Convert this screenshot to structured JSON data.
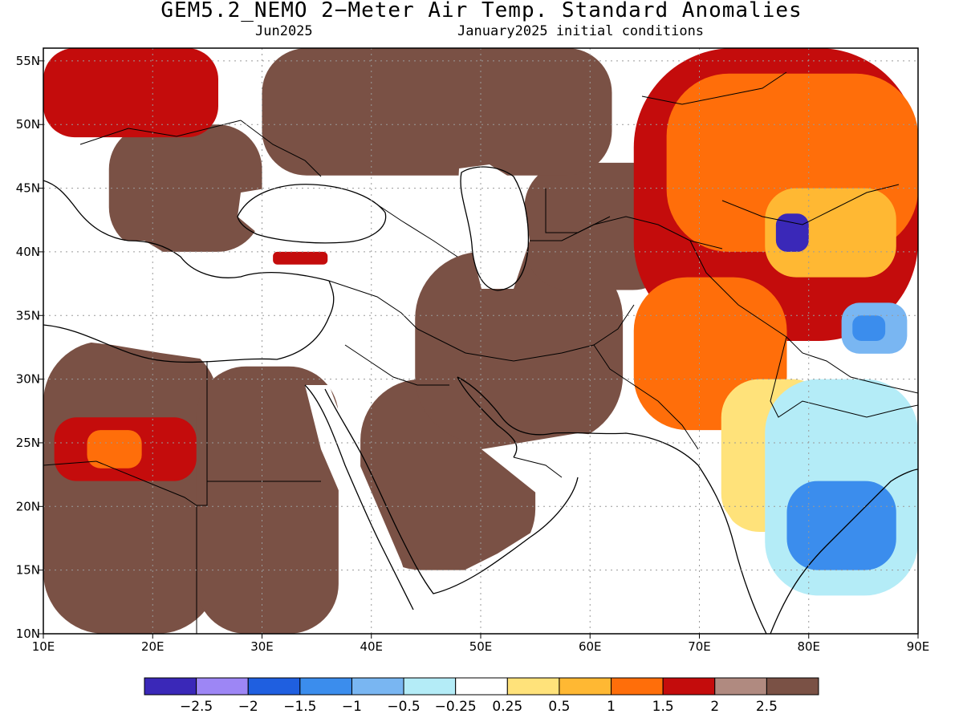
{
  "title": "GEM5.2_NEMO 2−Meter Air Temp. Standard Anomalies",
  "subtitle_left": "Jun2025",
  "subtitle_right": "January2025 initial conditions",
  "map": {
    "lon_range": [
      10,
      90
    ],
    "lat_range": [
      10,
      56
    ],
    "lon_ticks": [
      "10E",
      "20E",
      "30E",
      "40E",
      "50E",
      "60E",
      "70E",
      "80E",
      "90E"
    ],
    "lat_ticks": [
      "10N",
      "15N",
      "20N",
      "25N",
      "30N",
      "35N",
      "40N",
      "45N",
      "50N",
      "55N"
    ]
  },
  "colorbar": {
    "colors": [
      "#3a28b8",
      "#9d86f5",
      "#1f5fe0",
      "#3b8ded",
      "#79b6f2",
      "#b4ecf7",
      "#ffffff",
      "#ffe27a",
      "#ffb833",
      "#ff6e0a",
      "#c40c0c",
      "#b08a80",
      "#7a5145"
    ],
    "labels": [
      "−2.5",
      "−2",
      "−1.5",
      "−1",
      "−0.5",
      "−0.25",
      "0.25",
      "0.5",
      "1",
      "1.5",
      "2",
      "2.5"
    ]
  },
  "regions": [
    {
      "name": "sahara-west-brown",
      "level": 12,
      "lon": [
        10,
        26
      ],
      "lat": [
        10,
        33
      ]
    },
    {
      "name": "libya-egypt-brown",
      "level": 12,
      "lon": [
        24,
        37
      ],
      "lat": [
        10,
        31
      ]
    },
    {
      "name": "arabia-brown",
      "level": 12,
      "lon": [
        39,
        55
      ],
      "lat": [
        15,
        30
      ]
    },
    {
      "name": "iran-brown",
      "level": 12,
      "lon": [
        44,
        63
      ],
      "lat": [
        25,
        40
      ]
    },
    {
      "name": "central-asia-brown",
      "level": 12,
      "lon": [
        54,
        68
      ],
      "lat": [
        37,
        47
      ]
    },
    {
      "name": "russia-brown",
      "level": 12,
      "lon": [
        30,
        62
      ],
      "lat": [
        46,
        56
      ]
    },
    {
      "name": "balkans-brown",
      "level": 12,
      "lon": [
        16,
        30
      ],
      "lat": [
        40,
        50
      ]
    },
    {
      "name": "west-africa-warm",
      "level": 10,
      "lon": [
        11,
        24
      ],
      "lat": [
        22,
        27
      ]
    },
    {
      "name": "west-africa-orange",
      "level": 9,
      "lon": [
        14,
        19
      ],
      "lat": [
        23,
        26
      ]
    },
    {
      "name": "europe-warm",
      "level": 10,
      "lon": [
        10,
        26
      ],
      "lat": [
        49,
        56
      ]
    },
    {
      "name": "turkey-warm",
      "level": 10,
      "lon": [
        31,
        36
      ],
      "lat": [
        39,
        40
      ]
    },
    {
      "name": "kazakh-warm",
      "level": 10,
      "lon": [
        64,
        90
      ],
      "lat": [
        33,
        56
      ]
    },
    {
      "name": "kazakh-orange",
      "level": 9,
      "lon": [
        67,
        90
      ],
      "lat": [
        40,
        54
      ]
    },
    {
      "name": "tian-shan-yellow",
      "level": 8,
      "lon": [
        76,
        88
      ],
      "lat": [
        38,
        45
      ]
    },
    {
      "name": "pakistan-orange",
      "level": 9,
      "lon": [
        64,
        78
      ],
      "lat": [
        26,
        38
      ]
    },
    {
      "name": "india-yellow",
      "level": 7,
      "lon": [
        72,
        82
      ],
      "lat": [
        18,
        30
      ]
    },
    {
      "name": "india-cool",
      "level": 5,
      "lon": [
        76,
        90
      ],
      "lat": [
        13,
        30
      ]
    },
    {
      "name": "india-blue",
      "level": 3,
      "lon": [
        78,
        88
      ],
      "lat": [
        15,
        22
      ]
    },
    {
      "name": "tibet-cool",
      "level": 4,
      "lon": [
        83,
        89
      ],
      "lat": [
        32,
        36
      ]
    },
    {
      "name": "tibet-blue",
      "level": 3,
      "lon": [
        84,
        87
      ],
      "lat": [
        33,
        35
      ]
    },
    {
      "name": "kyrgyz-cold-core",
      "level": 0,
      "lon": [
        77,
        80
      ],
      "lat": [
        40,
        43
      ]
    }
  ]
}
